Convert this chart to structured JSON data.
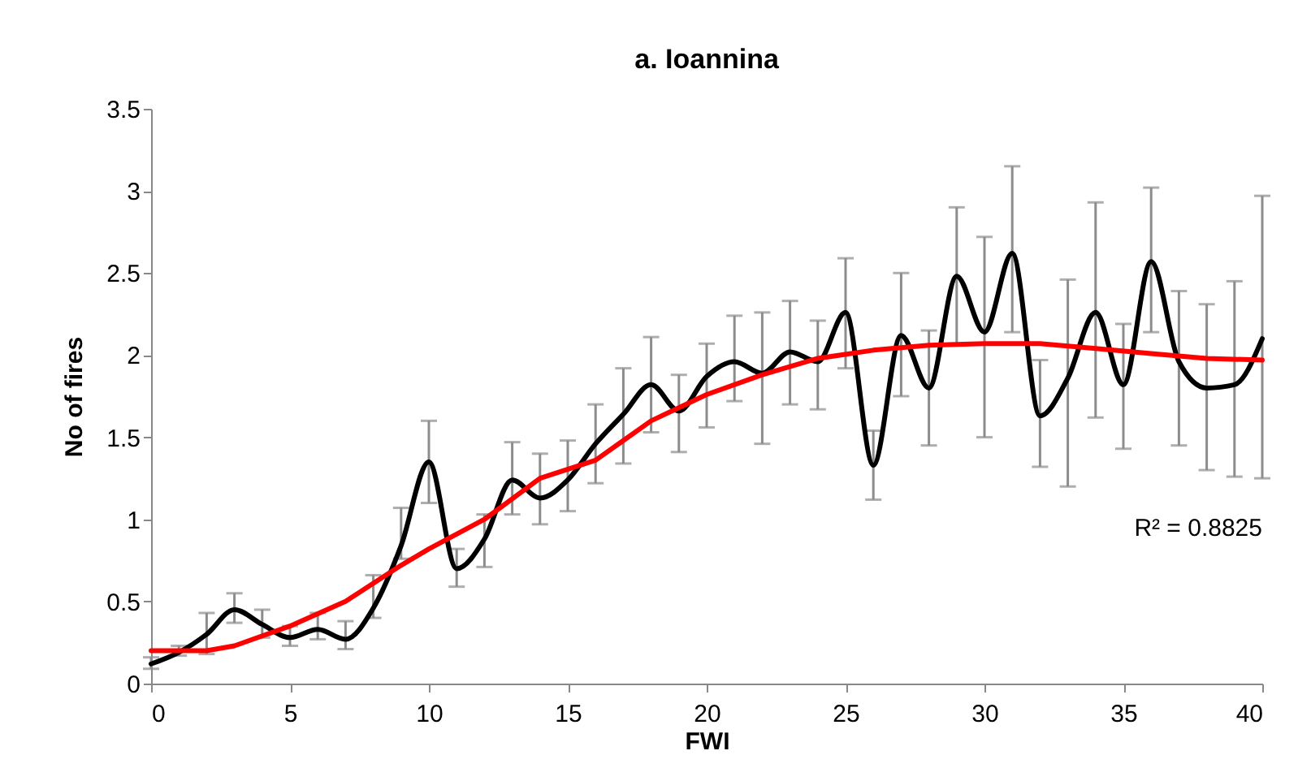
{
  "chart_data": {
    "type": "line",
    "title": "a. Ioannina",
    "xlabel": "FWI",
    "ylabel": "No of fires",
    "x": [
      0,
      1,
      2,
      3,
      4,
      5,
      6,
      7,
      8,
      9,
      10,
      11,
      12,
      13,
      14,
      15,
      16,
      17,
      18,
      19,
      20,
      21,
      22,
      23,
      24,
      25,
      26,
      27,
      28,
      29,
      30,
      31,
      32,
      33,
      34,
      35,
      36,
      37,
      38,
      39,
      40
    ],
    "series": [
      {
        "color": "#000000",
        "values": [
          0.12,
          0.19,
          0.3,
          0.45,
          0.36,
          0.28,
          0.33,
          0.27,
          0.46,
          0.84,
          1.35,
          0.7,
          0.88,
          1.24,
          1.13,
          1.24,
          1.46,
          1.64,
          1.82,
          1.66,
          1.87,
          1.96,
          1.89,
          2.02,
          1.96,
          2.26,
          1.33,
          2.12,
          1.8,
          2.48,
          2.14,
          2.62,
          1.63,
          1.86,
          2.26,
          1.82,
          2.57,
          1.96,
          1.8,
          1.82,
          2.1
        ],
        "errors": [
          [
            0.09,
            0.16
          ],
          [
            0.17,
            0.23
          ],
          [
            0.18,
            0.43
          ],
          [
            0.37,
            0.55
          ],
          [
            0.28,
            0.45
          ],
          [
            0.23,
            0.35
          ],
          [
            0.27,
            0.43
          ],
          [
            0.21,
            0.38
          ],
          [
            0.4,
            0.66
          ],
          [
            0.76,
            1.07
          ],
          [
            1.1,
            1.6
          ],
          [
            0.59,
            0.82
          ],
          [
            0.71,
            1.03
          ],
          [
            1.03,
            1.47
          ],
          [
            0.97,
            1.4
          ],
          [
            1.05,
            1.48
          ],
          [
            1.22,
            1.7
          ],
          [
            1.34,
            1.92
          ],
          [
            1.53,
            2.11
          ],
          [
            1.41,
            1.88
          ],
          [
            1.56,
            2.07
          ],
          [
            1.72,
            2.24
          ],
          [
            1.46,
            2.26
          ],
          [
            1.7,
            2.33
          ],
          [
            1.67,
            2.21
          ],
          [
            1.92,
            2.59
          ],
          [
            1.12,
            1.54
          ],
          [
            1.75,
            2.5
          ],
          [
            1.45,
            2.15
          ],
          [
            2.07,
            2.9
          ],
          [
            1.5,
            2.72
          ],
          [
            2.14,
            3.15
          ],
          [
            1.32,
            1.97
          ],
          [
            1.2,
            2.46
          ],
          [
            1.62,
            2.93
          ],
          [
            1.43,
            2.19
          ],
          [
            2.14,
            3.02
          ],
          [
            1.45,
            2.39
          ],
          [
            1.3,
            2.31
          ],
          [
            1.26,
            2.45
          ],
          [
            1.25,
            2.97
          ]
        ]
      },
      {
        "type": "line",
        "color": "#ff0000",
        "x": [
          0,
          2,
          3,
          5,
          7,
          9,
          10,
          12,
          14,
          16,
          18,
          20,
          22,
          24,
          26,
          28,
          30,
          32,
          34,
          36,
          38,
          40
        ],
        "values": [
          0.2,
          0.2,
          0.23,
          0.35,
          0.5,
          0.72,
          0.82,
          1.0,
          1.25,
          1.36,
          1.6,
          1.76,
          1.88,
          1.98,
          2.03,
          2.06,
          2.07,
          2.07,
          2.04,
          2.01,
          1.98,
          1.97
        ]
      }
    ],
    "annotations": [
      "R² = 0.8825"
    ],
    "xlim": [
      0,
      40
    ],
    "xticks": [
      0,
      5,
      10,
      15,
      20,
      25,
      30,
      35,
      40
    ],
    "ylim": [
      0,
      3.5
    ],
    "yticks": [
      0,
      0.5,
      1,
      1.5,
      2,
      2.5,
      3,
      3.5
    ],
    "grid": false,
    "marker": "none",
    "line_style": "solid"
  }
}
